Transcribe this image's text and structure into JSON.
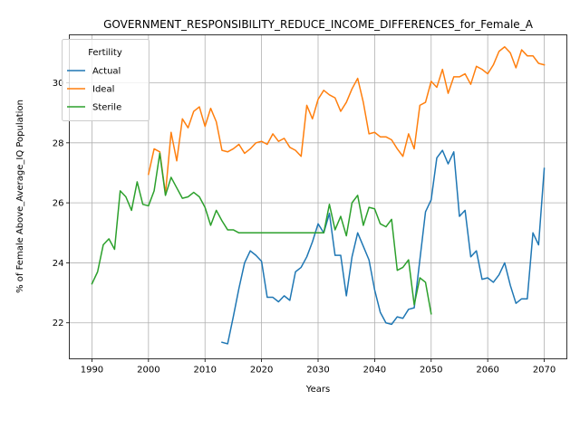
{
  "chart_data": {
    "type": "line",
    "title": "GOVERNMENT_RESPONSIBILITY_REDUCE_INCOME_DIFFERENCES_for_Female_A",
    "xlabel": "Years",
    "ylabel": "% of Female Above_Average_IQ Population",
    "xlim": [
      1986,
      2074
    ],
    "ylim": [
      20.8,
      31.6
    ],
    "xticks": [
      1990,
      2000,
      2010,
      2020,
      2030,
      2040,
      2050,
      2060,
      2070
    ],
    "yticks": [
      22,
      24,
      26,
      28,
      30
    ],
    "grid": true,
    "legend": {
      "title": "Fertility",
      "location": "upper-left"
    },
    "series": [
      {
        "name": "Actual",
        "color": "#1f77b4",
        "x": [
          2013,
          2014,
          2015,
          2016,
          2017,
          2018,
          2019,
          2020,
          2021,
          2022,
          2023,
          2024,
          2025,
          2026,
          2027,
          2028,
          2029,
          2030,
          2031,
          2032,
          2033,
          2034,
          2035,
          2036,
          2037,
          2038,
          2039,
          2040,
          2041,
          2042,
          2043,
          2044,
          2045,
          2046,
          2047,
          2048,
          2049,
          2050,
          2051,
          2052,
          2053,
          2054,
          2055,
          2056,
          2057,
          2058,
          2059,
          2060,
          2061,
          2062,
          2063,
          2064,
          2065,
          2066,
          2067,
          2068,
          2069,
          2070
        ],
        "y": [
          21.35,
          21.3,
          22.2,
          23.15,
          24.0,
          24.4,
          24.25,
          24.05,
          22.85,
          22.85,
          22.7,
          22.9,
          22.75,
          23.7,
          23.85,
          24.2,
          24.7,
          25.3,
          25.0,
          25.65,
          24.25,
          24.25,
          22.9,
          24.2,
          25.0,
          24.55,
          24.1,
          23.1,
          22.35,
          22.0,
          21.95,
          22.2,
          22.15,
          22.45,
          22.5,
          24.1,
          25.7,
          26.1,
          27.5,
          27.75,
          27.3,
          27.7,
          25.55,
          25.75,
          24.2,
          24.4,
          23.45,
          23.5,
          23.35,
          23.6,
          24.0,
          23.25,
          22.65,
          22.8,
          22.8,
          25.0,
          24.6,
          27.15
        ]
      },
      {
        "name": "Ideal",
        "color": "#ff7f0e",
        "x": [
          2000,
          2001,
          2002,
          2003,
          2004,
          2005,
          2006,
          2007,
          2008,
          2009,
          2010,
          2011,
          2012,
          2013,
          2014,
          2015,
          2016,
          2017,
          2018,
          2019,
          2020,
          2021,
          2022,
          2023,
          2024,
          2025,
          2026,
          2027,
          2028,
          2029,
          2030,
          2031,
          2032,
          2033,
          2034,
          2035,
          2036,
          2037,
          2038,
          2039,
          2040,
          2041,
          2042,
          2043,
          2044,
          2045,
          2046,
          2047,
          2048,
          2049,
          2050,
          2051,
          2052,
          2053,
          2054,
          2055,
          2056,
          2057,
          2058,
          2059,
          2060,
          2061,
          2062,
          2063,
          2064,
          2065,
          2066,
          2067,
          2068,
          2069,
          2070
        ],
        "y": [
          26.95,
          27.8,
          27.7,
          26.3,
          28.35,
          27.4,
          28.8,
          28.5,
          29.05,
          29.2,
          28.55,
          29.15,
          28.7,
          27.75,
          27.7,
          27.8,
          27.95,
          27.65,
          27.8,
          28.0,
          28.05,
          27.95,
          28.3,
          28.05,
          28.15,
          27.85,
          27.75,
          27.55,
          29.25,
          28.8,
          29.45,
          29.75,
          29.6,
          29.5,
          29.05,
          29.35,
          29.8,
          30.15,
          29.35,
          28.3,
          28.35,
          28.2,
          28.2,
          28.1,
          27.8,
          27.55,
          28.3,
          27.8,
          29.25,
          29.35,
          30.05,
          29.85,
          30.45,
          29.65,
          30.2,
          30.2,
          30.3,
          29.95,
          30.55,
          30.45,
          30.3,
          30.6,
          31.05,
          31.2,
          31.0,
          30.5,
          31.1,
          30.9,
          30.9,
          30.65,
          30.6
        ]
      },
      {
        "name": "Sterile",
        "color": "#2ca02c",
        "x": [
          1990,
          1991,
          1992,
          1993,
          1994,
          1995,
          1996,
          1997,
          1998,
          1999,
          2000,
          2001,
          2002,
          2003,
          2004,
          2005,
          2006,
          2007,
          2008,
          2009,
          2010,
          2011,
          2012,
          2013,
          2014,
          2015,
          2016,
          2017,
          2018,
          2019,
          2020,
          2021,
          2022,
          2023,
          2024,
          2025,
          2026,
          2027,
          2028,
          2029,
          2030,
          2031,
          2032,
          2033,
          2034,
          2035,
          2036,
          2037,
          2038,
          2039,
          2040,
          2041,
          2042,
          2043,
          2044,
          2045,
          2046,
          2047,
          2048,
          2049,
          2050
        ],
        "y": [
          23.3,
          23.7,
          24.6,
          24.8,
          24.45,
          26.4,
          26.2,
          25.75,
          26.7,
          25.95,
          25.9,
          26.4,
          27.65,
          26.25,
          26.85,
          26.5,
          26.15,
          26.2,
          26.35,
          26.2,
          25.85,
          25.25,
          25.75,
          25.4,
          25.1,
          25.1,
          25.0,
          25.0,
          25.0,
          25.0,
          25.0,
          25.0,
          25.0,
          25.0,
          25.0,
          25.0,
          25.0,
          25.0,
          25.0,
          25.0,
          25.0,
          25.0,
          25.95,
          25.1,
          25.55,
          24.9,
          26.0,
          26.25,
          25.25,
          25.85,
          25.8,
          25.3,
          25.2,
          25.45,
          23.75,
          23.85,
          24.1,
          22.6,
          23.5,
          23.35,
          22.3
        ]
      }
    ]
  }
}
